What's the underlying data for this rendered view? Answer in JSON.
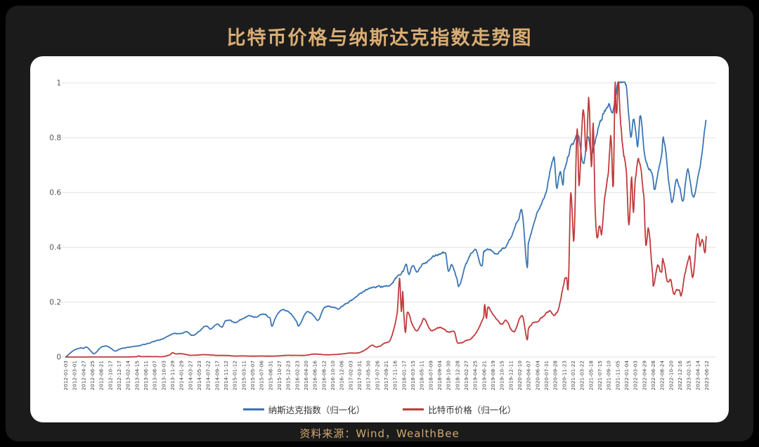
{
  "title": "比特币价格与纳斯达克指数走势图",
  "source": "资料来源：Wind，WealthBee",
  "colors": {
    "background": "#000000",
    "panel": "#1b1b1b",
    "card": "#ffffff",
    "title": "#d9ad74",
    "source_text": "#d2a96f",
    "nasdaq_line": "#3b76b4",
    "bitcoin_line": "#c13a3c",
    "grid": "#e2e2e2",
    "y_tick_text": "#555555",
    "x_tick_text": "#444444",
    "legend_text": "#333333"
  },
  "chart_data": {
    "type": "line",
    "title": "比特币价格与纳斯达克指数走势图",
    "xlabel": "",
    "ylabel": "",
    "ylim": [
      0,
      1
    ],
    "grid": true,
    "legend_position": "bottom",
    "yticks": [
      0,
      0.2,
      0.4,
      0.6,
      0.8,
      1
    ],
    "ytick_labels": [
      "0",
      "0.2",
      "0.4",
      "0.6",
      "0.8",
      "1"
    ],
    "x_tick_labels": [
      "2012-01-03",
      "2012-03-01",
      "2012-04-27",
      "2012-06-25",
      "2012-08-21",
      "2012-10-17",
      "2012-12-17",
      "2013-02-14",
      "2013-04-15",
      "2013-06-11",
      "2013-08-07",
      "2013-10-03",
      "2013-11-29",
      "2014-01-29",
      "2014-03-27",
      "2014-05-23",
      "2014-07-22",
      "2014-09-17",
      "2014-11-12",
      "2015-01-12",
      "2015-03-11",
      "2015-05-07",
      "2015-07-06",
      "2015-08-31",
      "2015-10-27",
      "2015-12-23",
      "2016-02-23",
      "2016-04-20",
      "2016-06-16",
      "2016-08-12",
      "2016-10-10",
      "2016-12-06",
      "2017-02-03",
      "2017-03-31",
      "2017-05-30",
      "2017-07-26",
      "2017-09-21",
      "2017-11-16",
      "2018-01-17",
      "2018-03-15",
      "2018-05-11",
      "2018-07-09",
      "2018-09-04",
      "2018-10-30",
      "2018-12-28",
      "2019-02-27",
      "2019-04-25",
      "2019-06-21",
      "2019-08-19",
      "2019-10-15",
      "2019-12-11",
      "2020-02-10",
      "2020-04-07",
      "2020-06-04",
      "2020-07-31",
      "2020-09-28",
      "2020-11-23",
      "2021-01-22",
      "2021-03-22",
      "2021-05-18",
      "2021-07-15",
      "2021-09-10",
      "2021-11-05",
      "2022-01-04",
      "2022-03-03",
      "2022-04-29",
      "2022-06-28",
      "2022-08-24",
      "2022-10-20",
      "2022-12-16",
      "2023-02-15",
      "2023-04-14",
      "2023-06-12"
    ],
    "x_unit": "tick_index_0_to_72",
    "series": [
      {
        "name": "纳斯达克指数（归一化）",
        "color": "#3b76b4",
        "points": [
          [
            0,
            0
          ],
          [
            0.5,
            0.013
          ],
          [
            1,
            0.025
          ],
          [
            1.7,
            0.033
          ],
          [
            2,
            0.031
          ],
          [
            2.4,
            0.035
          ],
          [
            3,
            0.016
          ],
          [
            3.3,
            0.012
          ],
          [
            4,
            0.035
          ],
          [
            4.6,
            0.04
          ],
          [
            5,
            0.034
          ],
          [
            5.6,
            0.022
          ],
          [
            6,
            0.027
          ],
          [
            7,
            0.034
          ],
          [
            8,
            0.039
          ],
          [
            9,
            0.047
          ],
          [
            10,
            0.058
          ],
          [
            11,
            0.066
          ],
          [
            12,
            0.085
          ],
          [
            13,
            0.086
          ],
          [
            13.6,
            0.092
          ],
          [
            14.2,
            0.081
          ],
          [
            15,
            0.098
          ],
          [
            15.8,
            0.119
          ],
          [
            16.3,
            0.108
          ],
          [
            17,
            0.126
          ],
          [
            17.6,
            0.112
          ],
          [
            18,
            0.136
          ],
          [
            18.5,
            0.141
          ],
          [
            19,
            0.132
          ],
          [
            20,
            0.146
          ],
          [
            20.6,
            0.153
          ],
          [
            21,
            0.151
          ],
          [
            21.5,
            0.145
          ],
          [
            22,
            0.152
          ],
          [
            22.4,
            0.156
          ],
          [
            23,
            0.138
          ],
          [
            23.2,
            0.108
          ],
          [
            23.5,
            0.132
          ],
          [
            24,
            0.162
          ],
          [
            24.6,
            0.171
          ],
          [
            25,
            0.164
          ],
          [
            25.5,
            0.15
          ],
          [
            26,
            0.131
          ],
          [
            26.2,
            0.113
          ],
          [
            27,
            0.158
          ],
          [
            27.6,
            0.16
          ],
          [
            28,
            0.148
          ],
          [
            28.4,
            0.138
          ],
          [
            29,
            0.176
          ],
          [
            30,
            0.183
          ],
          [
            30.7,
            0.172
          ],
          [
            31,
            0.181
          ],
          [
            32,
            0.203
          ],
          [
            33,
            0.221
          ],
          [
            34,
            0.245
          ],
          [
            35,
            0.256
          ],
          [
            36,
            0.257
          ],
          [
            37,
            0.282
          ],
          [
            38,
            0.316
          ],
          [
            38.3,
            0.336
          ],
          [
            38.6,
            0.303
          ],
          [
            39,
            0.333
          ],
          [
            39.5,
            0.314
          ],
          [
            40,
            0.327
          ],
          [
            41,
            0.35
          ],
          [
            42,
            0.372
          ],
          [
            42.7,
            0.377
          ],
          [
            43,
            0.312
          ],
          [
            43.4,
            0.332
          ],
          [
            44,
            0.28
          ],
          [
            44.2,
            0.253
          ],
          [
            45,
            0.337
          ],
          [
            46,
            0.386
          ],
          [
            46.8,
            0.329
          ],
          [
            47,
            0.381
          ],
          [
            48,
            0.376
          ],
          [
            48.3,
            0.367
          ],
          [
            49,
            0.39
          ],
          [
            50,
            0.428
          ],
          [
            51,
            0.507
          ],
          [
            51.3,
            0.52
          ],
          [
            51.9,
            0.318
          ],
          [
            52,
            0.407
          ],
          [
            53,
            0.513
          ],
          [
            54,
            0.603
          ],
          [
            54.9,
            0.711
          ],
          [
            55.2,
            0.606
          ],
          [
            55.6,
            0.668
          ],
          [
            55.9,
            0.625
          ],
          [
            56,
            0.672
          ],
          [
            57,
            0.776
          ],
          [
            57.6,
            0.806
          ],
          [
            58.2,
            0.701
          ],
          [
            58.7,
            0.823
          ],
          [
            59.1,
            0.75
          ],
          [
            60,
            0.867
          ],
          [
            61,
            0.921
          ],
          [
            61.5,
            0.893
          ],
          [
            62,
            0.984
          ],
          [
            62.4,
            1.0
          ],
          [
            63,
            0.98
          ],
          [
            63.5,
            0.8
          ],
          [
            63.8,
            0.85
          ],
          [
            64,
            0.822
          ],
          [
            64.3,
            0.753
          ],
          [
            64.6,
            0.868
          ],
          [
            65,
            0.74
          ],
          [
            65.5,
            0.682
          ],
          [
            66,
            0.655
          ],
          [
            66.2,
            0.613
          ],
          [
            67,
            0.742
          ],
          [
            67.2,
            0.8
          ],
          [
            68,
            0.6
          ],
          [
            68.2,
            0.571
          ],
          [
            68.6,
            0.655
          ],
          [
            69,
            0.627
          ],
          [
            69.4,
            0.588
          ],
          [
            69.9,
            0.7
          ],
          [
            70.5,
            0.6
          ],
          [
            71,
            0.655
          ],
          [
            71.5,
            0.745
          ],
          [
            72,
            0.87
          ]
        ]
      },
      {
        "name": "比特币价格（归一化）",
        "color": "#c13a3c",
        "points": [
          [
            0,
            0.0001
          ],
          [
            2,
            0.0001
          ],
          [
            4,
            0.0002
          ],
          [
            6,
            0.0002
          ],
          [
            7,
            0.0004
          ],
          [
            8,
            0.0012
          ],
          [
            8.2,
            0.0039
          ],
          [
            8.5,
            0.0015
          ],
          [
            9,
            0.0016
          ],
          [
            10,
            0.0015
          ],
          [
            11,
            0.0016
          ],
          [
            11.8,
            0.009
          ],
          [
            12,
            0.016
          ],
          [
            12.4,
            0.011
          ],
          [
            13,
            0.0117
          ],
          [
            14,
            0.007
          ],
          [
            15,
            0.0075
          ],
          [
            15.5,
            0.0095
          ],
          [
            16,
            0.009
          ],
          [
            17,
            0.0067
          ],
          [
            18,
            0.0061
          ],
          [
            19,
            0.0039
          ],
          [
            20,
            0.0042
          ],
          [
            21,
            0.0035
          ],
          [
            22,
            0.0039
          ],
          [
            23,
            0.0033
          ],
          [
            24,
            0.0042
          ],
          [
            25,
            0.0064
          ],
          [
            26,
            0.0061
          ],
          [
            27,
            0.0064
          ],
          [
            28,
            0.011
          ],
          [
            29,
            0.0086
          ],
          [
            30,
            0.009
          ],
          [
            31,
            0.011
          ],
          [
            32,
            0.0146
          ],
          [
            33,
            0.0157
          ],
          [
            34,
            0.0317
          ],
          [
            34.5,
            0.043
          ],
          [
            35,
            0.037
          ],
          [
            36,
            0.0526
          ],
          [
            36.5,
            0.063
          ],
          [
            37,
            0.114
          ],
          [
            37.3,
            0.17
          ],
          [
            37.55,
            0.283
          ],
          [
            37.75,
            0.165
          ],
          [
            37.9,
            0.235
          ],
          [
            38,
            0.162
          ],
          [
            38.2,
            0.087
          ],
          [
            38.4,
            0.166
          ],
          [
            39,
            0.12
          ],
          [
            39.5,
            0.1
          ],
          [
            40,
            0.122
          ],
          [
            40.3,
            0.14
          ],
          [
            41,
            0.097
          ],
          [
            42,
            0.107
          ],
          [
            43,
            0.091
          ],
          [
            43.7,
            0.092
          ],
          [
            44,
            0.053
          ],
          [
            44.2,
            0.046
          ],
          [
            45,
            0.056
          ],
          [
            46,
            0.08
          ],
          [
            47,
            0.148
          ],
          [
            47.1,
            0.2
          ],
          [
            47.3,
            0.145
          ],
          [
            47.45,
            0.184
          ],
          [
            48,
            0.158
          ],
          [
            48.5,
            0.139
          ],
          [
            49,
            0.121
          ],
          [
            49.5,
            0.135
          ],
          [
            50,
            0.105
          ],
          [
            50.5,
            0.099
          ],
          [
            51,
            0.143
          ],
          [
            51.4,
            0.15
          ],
          [
            51.9,
            0.07
          ],
          [
            52,
            0.107
          ],
          [
            52.5,
            0.13
          ],
          [
            53,
            0.142
          ],
          [
            54,
            0.165
          ],
          [
            54.5,
            0.172
          ],
          [
            55,
            0.155
          ],
          [
            55.5,
            0.19
          ],
          [
            56,
            0.267
          ],
          [
            56.3,
            0.286
          ],
          [
            56.5,
            0.258
          ],
          [
            56.77,
            0.594
          ],
          [
            57,
            0.478
          ],
          [
            57.15,
            0.44
          ],
          [
            57.5,
            0.845
          ],
          [
            57.7,
            0.63
          ],
          [
            58,
            0.833
          ],
          [
            58.25,
            0.887
          ],
          [
            58.5,
            0.74
          ],
          [
            58.8,
            0.939
          ],
          [
            59.1,
            0.69
          ],
          [
            59.3,
            0.85
          ],
          [
            59.5,
            0.532
          ],
          [
            59.7,
            0.419
          ],
          [
            60,
            0.461
          ],
          [
            60.25,
            0.432
          ],
          [
            60.6,
            0.555
          ],
          [
            61,
            0.652
          ],
          [
            61.3,
            0.762
          ],
          [
            61.55,
            0.59
          ],
          [
            61.75,
            0.97
          ],
          [
            61.85,
            0.85
          ],
          [
            62,
            0.884
          ],
          [
            62.08,
            1.0
          ],
          [
            62.3,
            0.86
          ],
          [
            62.5,
            0.775
          ],
          [
            62.7,
            0.713
          ],
          [
            63,
            0.672
          ],
          [
            63.3,
            0.478
          ],
          [
            63.6,
            0.63
          ],
          [
            63.8,
            0.497
          ],
          [
            64,
            0.616
          ],
          [
            64.4,
            0.687
          ],
          [
            65,
            0.559
          ],
          [
            65.2,
            0.391
          ],
          [
            65.5,
            0.461
          ],
          [
            66,
            0.293
          ],
          [
            66.05,
            0.257
          ],
          [
            66.5,
            0.33
          ],
          [
            67,
            0.31
          ],
          [
            67.1,
            0.362
          ],
          [
            67.6,
            0.278
          ],
          [
            68,
            0.276
          ],
          [
            68.35,
            0.23
          ],
          [
            68.6,
            0.242
          ],
          [
            69,
            0.242
          ],
          [
            69.2,
            0.225
          ],
          [
            69.6,
            0.3
          ],
          [
            70,
            0.352
          ],
          [
            70.15,
            0.365
          ],
          [
            70.5,
            0.291
          ],
          [
            71,
            0.448
          ],
          [
            71.3,
            0.399
          ],
          [
            71.6,
            0.425
          ],
          [
            71.85,
            0.372
          ],
          [
            72,
            0.435
          ]
        ]
      }
    ]
  }
}
